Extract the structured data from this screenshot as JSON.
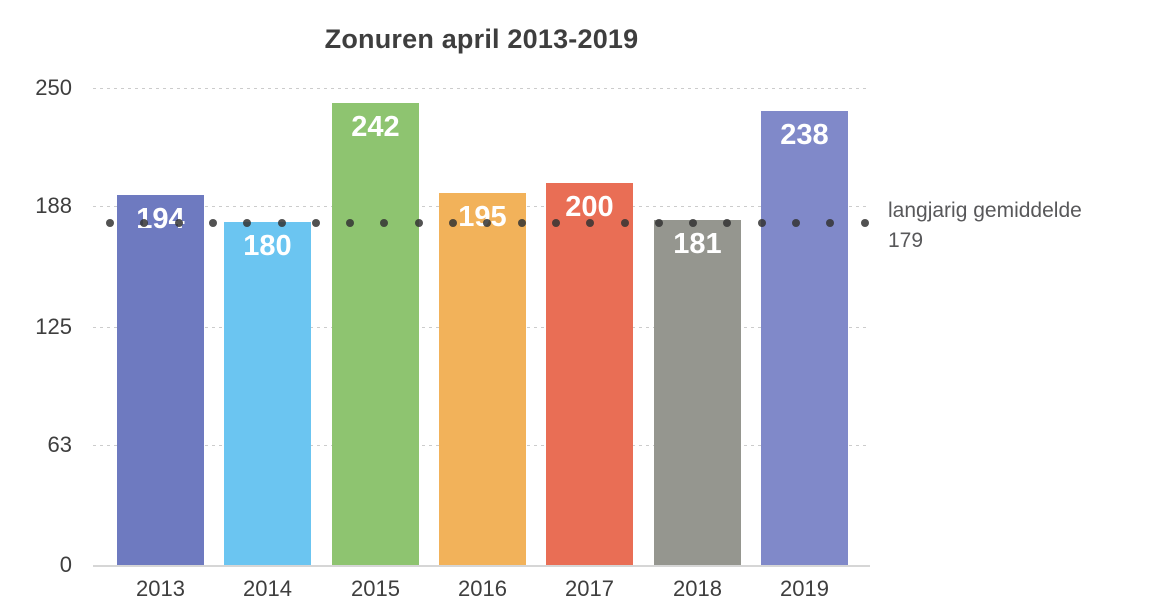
{
  "chart_data": {
    "type": "bar",
    "title": "Zonuren april 2013-2019",
    "categories": [
      "2013",
      "2014",
      "2015",
      "2016",
      "2017",
      "2018",
      "2019"
    ],
    "values": [
      194,
      180,
      242,
      195,
      200,
      181,
      238
    ],
    "bar_colors": [
      "#6E7AC0",
      "#6BC5F1",
      "#8EC470",
      "#F2B25A",
      "#E96E55",
      "#95968F",
      "#8089C9"
    ],
    "value_label_color": "#FFFFFF",
    "xlabel": "",
    "ylabel": "",
    "ylim": [
      0,
      250
    ],
    "y_ticks": [
      0,
      63,
      125,
      188,
      250
    ],
    "grid": true,
    "gridline_color": "#CCCCCC",
    "axis_line_color": "#D6D6D6",
    "text_color": "#3E3E3E",
    "annotation_color": "#58585A",
    "average_line": {
      "value": 179,
      "label": "langjarig gemiddelde",
      "style": "dotted",
      "color": "#343434",
      "legend_position": "right"
    }
  }
}
